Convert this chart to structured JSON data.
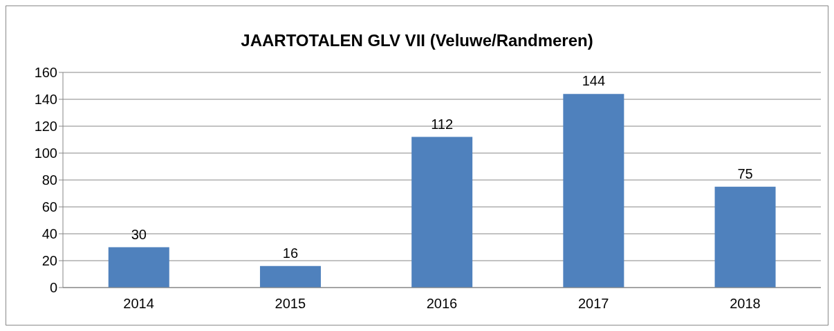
{
  "chart_data": {
    "type": "bar",
    "title": "JAARTOTALEN GLV VII (Veluwe/Randmeren)",
    "categories": [
      "2014",
      "2015",
      "2016",
      "2017",
      "2018"
    ],
    "values": [
      30,
      16,
      112,
      144,
      75
    ],
    "color": "#4f81bd",
    "ylim": [
      0,
      160
    ],
    "yticks": [
      0,
      20,
      40,
      60,
      80,
      100,
      120,
      140,
      160
    ],
    "grid": "y",
    "data_labels": true
  }
}
